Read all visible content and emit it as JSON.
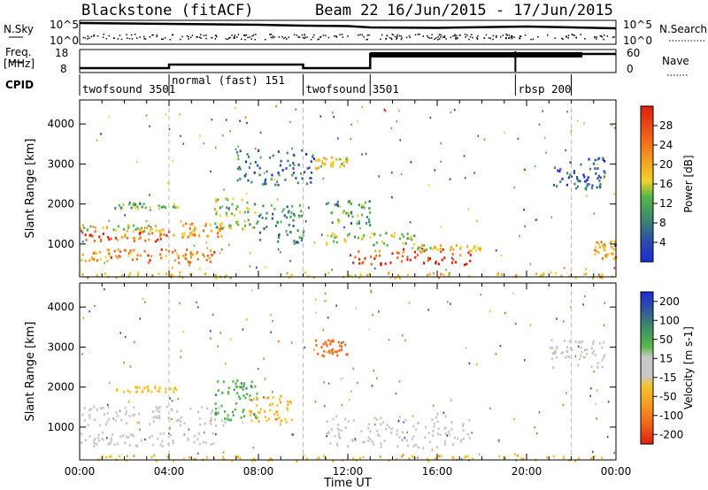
{
  "chart_data": [
    {
      "type": "line",
      "panel": "header",
      "title": "Blackstone (fitACF)",
      "beam_label": "Beam 22",
      "date_range": "16/Jun/2015 - 17/Jun/2015",
      "left_labels": {
        "nsky": "N.Sky",
        "freq_top": "Freq.",
        "freq_unit": "[MHz]",
        "cpid": "CPID"
      },
      "right_labels": {
        "nsearch": "N.Search",
        "nave": "Nave"
      },
      "noise_ticks": {
        "top": "10^5",
        "bottom": "10^0"
      },
      "freq_ticks": [
        "18",
        "8"
      ],
      "nave_ticks": [
        "60",
        "0"
      ],
      "noise_sky": [
        {
          "x": 0,
          "y": 4.6
        },
        {
          "x": 2,
          "y": 4.5
        },
        {
          "x": 4,
          "y": 4.4
        },
        {
          "x": 6,
          "y": 4.3
        },
        {
          "x": 8,
          "y": 4.2
        },
        {
          "x": 10,
          "y": 4.0
        },
        {
          "x": 12,
          "y": 3.9
        },
        {
          "x": 13,
          "y": 3.6
        },
        {
          "x": 16,
          "y": 3.5
        },
        {
          "x": 20,
          "y": 3.8
        },
        {
          "x": 24,
          "y": 3.4
        }
      ],
      "frequency": [
        {
          "x": 0,
          "y": 9
        },
        {
          "x": 4,
          "y": 9
        },
        {
          "x": 4,
          "y": 11
        },
        {
          "x": 10,
          "y": 11
        },
        {
          "x": 10,
          "y": 9
        },
        {
          "x": 13,
          "y": 9
        },
        {
          "x": 13,
          "y": 17
        },
        {
          "x": 24,
          "y": 17
        }
      ],
      "cpid_segments": [
        {
          "label": "twofsound 3501",
          "start": 0,
          "end": 4
        },
        {
          "label": "normal (fast) 151",
          "start": 4,
          "end": 10
        },
        {
          "label": "twofsound 3501",
          "start": 10,
          "end": 13
        },
        {
          "label": "rbsp 200",
          "start": 19.5,
          "end": 22
        }
      ]
    },
    {
      "type": "heatmap",
      "panel": "power",
      "ylabel": "Slant Range [km]",
      "ylim": [
        180,
        4600
      ],
      "xlim": [
        0,
        24
      ],
      "yticks": [
        1000,
        2000,
        3000,
        4000
      ],
      "colorbar_label": "Power [dB]",
      "colorbar_ticks": [
        4,
        8,
        12,
        16,
        20,
        24,
        28
      ],
      "colorbar_range": [
        0,
        32
      ],
      "regions": [
        {
          "x0": 0,
          "x1": 4,
          "y0": 1050,
          "y1": 1350,
          "value": 26
        },
        {
          "x0": 0,
          "x1": 4,
          "y0": 1350,
          "y1": 1500,
          "value": 18
        },
        {
          "x0": 0,
          "x1": 3,
          "y0": 600,
          "y1": 900,
          "value": 24
        },
        {
          "x0": 3,
          "x1": 6,
          "y0": 550,
          "y1": 900,
          "value": 24
        },
        {
          "x0": 4,
          "x1": 6.5,
          "y0": 1200,
          "y1": 1550,
          "value": 22
        },
        {
          "x0": 6,
          "x1": 8,
          "y0": 1400,
          "y1": 2200,
          "value": 16
        },
        {
          "x0": 8,
          "x1": 10,
          "y0": 1000,
          "y1": 2000,
          "value": 10
        },
        {
          "x0": 1.5,
          "x1": 4.5,
          "y0": 1900,
          "y1": 2050,
          "value": 14
        },
        {
          "x0": 7,
          "x1": 10.5,
          "y0": 2500,
          "y1": 3400,
          "value": 8
        },
        {
          "x0": 10.5,
          "x1": 12,
          "y0": 2900,
          "y1": 3200,
          "value": 18
        },
        {
          "x0": 12,
          "x1": 17.5,
          "y0": 500,
          "y1": 900,
          "value": 28
        },
        {
          "x0": 11,
          "x1": 15,
          "y0": 1000,
          "y1": 1300,
          "value": 16
        },
        {
          "x0": 15,
          "x1": 18,
          "y0": 850,
          "y1": 1000,
          "value": 18
        },
        {
          "x0": 11,
          "x1": 13,
          "y0": 1500,
          "y1": 2100,
          "value": 12
        },
        {
          "x0": 21,
          "x1": 23.5,
          "y0": 2400,
          "y1": 3200,
          "value": 6
        },
        {
          "x0": 23,
          "x1": 24,
          "y0": 650,
          "y1": 1100,
          "value": 22
        },
        {
          "x0": 0,
          "x1": 24,
          "y0": 180,
          "y1": 320,
          "value": 20
        }
      ]
    },
    {
      "type": "heatmap",
      "panel": "velocity",
      "ylabel": "Slant Range [km]",
      "ylim": [
        180,
        4600
      ],
      "xlim": [
        0,
        24
      ],
      "yticks": [
        1000,
        2000,
        3000,
        4000
      ],
      "xlabel": "Time UT",
      "xticks": [
        "00:00",
        "04:00",
        "08:00",
        "12:00",
        "16:00",
        "20:00",
        "00:00"
      ],
      "colorbar_label": "Velocity [m s-1]",
      "colorbar_ticks": [
        -200,
        -100,
        -50,
        -15,
        15,
        50,
        100,
        200
      ],
      "regions": [
        {
          "x0": 0,
          "x1": 6.5,
          "y0": 1050,
          "y1": 1550,
          "value": 0
        },
        {
          "x0": 0,
          "x1": 6,
          "y0": 550,
          "y1": 900,
          "value": 0
        },
        {
          "x0": 6,
          "x1": 8,
          "y0": 1200,
          "y1": 2200,
          "value": 40
        },
        {
          "x0": 7.5,
          "x1": 9.5,
          "y0": 1100,
          "y1": 1800,
          "value": -40
        },
        {
          "x0": 11,
          "x1": 17.5,
          "y0": 500,
          "y1": 1300,
          "value": 0
        },
        {
          "x0": 0,
          "x1": 24,
          "y0": 180,
          "y1": 320,
          "value": -40
        },
        {
          "x0": 21,
          "x1": 23.5,
          "y0": 2500,
          "y1": 3200,
          "value": 0
        },
        {
          "x0": 10.5,
          "x1": 12,
          "y0": 2800,
          "y1": 3200,
          "value": -150
        },
        {
          "x0": 1.5,
          "x1": 4.5,
          "y0": 1900,
          "y1": 2050,
          "value": -30
        }
      ]
    }
  ]
}
